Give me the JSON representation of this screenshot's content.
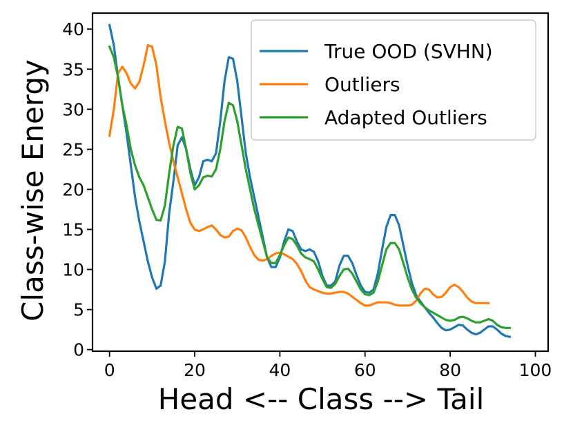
{
  "chart_data": {
    "type": "line",
    "title": "",
    "xlabel": "Head <-- Class --> Tail",
    "ylabel": "Class-wise Energy",
    "xlim": [
      -4,
      103
    ],
    "ylim": [
      -0.2,
      42
    ],
    "xticks": [
      0,
      20,
      40,
      60,
      80,
      100
    ],
    "yticks": [
      0,
      5,
      10,
      15,
      20,
      25,
      30,
      35,
      40
    ],
    "grid": false,
    "legend_position": "top-right",
    "series": [
      {
        "name": "True OOD (SVHN)",
        "color": "#1f77b4",
        "points": [
          [
            0,
            40.5
          ],
          [
            1,
            38
          ],
          [
            2,
            34
          ],
          [
            3,
            30.5
          ],
          [
            4,
            27
          ],
          [
            5,
            23
          ],
          [
            6,
            19
          ],
          [
            7,
            16
          ],
          [
            8,
            13.5
          ],
          [
            9,
            11
          ],
          [
            10,
            9
          ],
          [
            11,
            7.6
          ],
          [
            12,
            8
          ],
          [
            13,
            11
          ],
          [
            14,
            17
          ],
          [
            15,
            21
          ],
          [
            16,
            25.5
          ],
          [
            17,
            26.5
          ],
          [
            18,
            25
          ],
          [
            19,
            22.5
          ],
          [
            20,
            20.5
          ],
          [
            21,
            21.5
          ],
          [
            22,
            23.5
          ],
          [
            23,
            23.7
          ],
          [
            24,
            23.5
          ],
          [
            25,
            24.5
          ],
          [
            26,
            28.5
          ],
          [
            27,
            33.5
          ],
          [
            28,
            36.5
          ],
          [
            29,
            36.3
          ],
          [
            30,
            33.5
          ],
          [
            31,
            29
          ],
          [
            32,
            24.5
          ],
          [
            33,
            21.5
          ],
          [
            34,
            19
          ],
          [
            35,
            16.5
          ],
          [
            36,
            14
          ],
          [
            37,
            11.5
          ],
          [
            38,
            10.3
          ],
          [
            39,
            10.3
          ],
          [
            40,
            11.5
          ],
          [
            41,
            13.5
          ],
          [
            42,
            15
          ],
          [
            43,
            14.8
          ],
          [
            44,
            13.5
          ],
          [
            45,
            12.5
          ],
          [
            46,
            12.3
          ],
          [
            47,
            12.5
          ],
          [
            48,
            12.2
          ],
          [
            49,
            11
          ],
          [
            50,
            9.2
          ],
          [
            51,
            8
          ],
          [
            52,
            8
          ],
          [
            53,
            8.5
          ],
          [
            54,
            10.5
          ],
          [
            55,
            11.7
          ],
          [
            56,
            11.7
          ],
          [
            57,
            10.8
          ],
          [
            58,
            9.3
          ],
          [
            59,
            8
          ],
          [
            60,
            7.2
          ],
          [
            61,
            7.1
          ],
          [
            62,
            7.5
          ],
          [
            63,
            9.5
          ],
          [
            64,
            12.5
          ],
          [
            65,
            15.3
          ],
          [
            66,
            16.8
          ],
          [
            67,
            16.8
          ],
          [
            68,
            15.5
          ],
          [
            69,
            13
          ],
          [
            70,
            10.5
          ],
          [
            71,
            8.3
          ],
          [
            72,
            6.8
          ],
          [
            73,
            6
          ],
          [
            74,
            5.3
          ],
          [
            75,
            4.6
          ],
          [
            76,
            4
          ],
          [
            77,
            3.3
          ],
          [
            78,
            2.7
          ],
          [
            79,
            2.4
          ],
          [
            80,
            2.5
          ],
          [
            81,
            2.8
          ],
          [
            82,
            3.1
          ],
          [
            83,
            3
          ],
          [
            84,
            2.5
          ],
          [
            85,
            2.1
          ],
          [
            86,
            1.9
          ],
          [
            87,
            2.1
          ],
          [
            88,
            2.5
          ],
          [
            89,
            2.9
          ],
          [
            90,
            2.9
          ],
          [
            91,
            2.5
          ],
          [
            92,
            2
          ],
          [
            93,
            1.7
          ],
          [
            94,
            1.6
          ]
        ]
      },
      {
        "name": "Outliers",
        "color": "#ff7f0e",
        "points": [
          [
            0,
            26.7
          ],
          [
            1,
            30
          ],
          [
            2,
            34.5
          ],
          [
            3,
            35.3
          ],
          [
            4,
            34.5
          ],
          [
            5,
            33.2
          ],
          [
            6,
            32.6
          ],
          [
            7,
            33.4
          ],
          [
            8,
            35.5
          ],
          [
            9,
            38
          ],
          [
            10,
            37.8
          ],
          [
            11,
            35.5
          ],
          [
            12,
            31.5
          ],
          [
            13,
            28.5
          ],
          [
            14,
            25.8
          ],
          [
            15,
            23.5
          ],
          [
            16,
            21.5
          ],
          [
            17,
            19.5
          ],
          [
            18,
            17.5
          ],
          [
            19,
            15.8
          ],
          [
            20,
            15
          ],
          [
            21,
            14.8
          ],
          [
            22,
            15
          ],
          [
            23,
            15.3
          ],
          [
            24,
            15.5
          ],
          [
            25,
            15
          ],
          [
            26,
            14.3
          ],
          [
            27,
            14
          ],
          [
            28,
            14.1
          ],
          [
            29,
            14.8
          ],
          [
            30,
            15.1
          ],
          [
            31,
            14.9
          ],
          [
            32,
            14
          ],
          [
            33,
            12.8
          ],
          [
            34,
            11.8
          ],
          [
            35,
            11.2
          ],
          [
            36,
            11.1
          ],
          [
            37,
            11.3
          ],
          [
            38,
            11.7
          ],
          [
            39,
            12
          ],
          [
            40,
            12.1
          ],
          [
            41,
            11.9
          ],
          [
            42,
            11.6
          ],
          [
            43,
            11.3
          ],
          [
            44,
            10.7
          ],
          [
            45,
            9.8
          ],
          [
            46,
            8.6
          ],
          [
            47,
            7.8
          ],
          [
            48,
            7.5
          ],
          [
            49,
            7.3
          ],
          [
            50,
            7.1
          ],
          [
            51,
            7
          ],
          [
            52,
            7
          ],
          [
            53,
            7.1
          ],
          [
            54,
            7.2
          ],
          [
            55,
            7.2
          ],
          [
            56,
            7
          ],
          [
            57,
            6.6
          ],
          [
            58,
            6.2
          ],
          [
            59,
            5.8
          ],
          [
            60,
            5.5
          ],
          [
            61,
            5.5
          ],
          [
            62,
            5.7
          ],
          [
            63,
            5.9
          ],
          [
            64,
            5.9
          ],
          [
            65,
            5.9
          ],
          [
            66,
            5.8
          ],
          [
            67,
            5.6
          ],
          [
            68,
            5.5
          ],
          [
            69,
            5.5
          ],
          [
            70,
            5.5
          ],
          [
            71,
            5.6
          ],
          [
            72,
            6.1
          ],
          [
            73,
            7
          ],
          [
            74,
            7.6
          ],
          [
            75,
            7.5
          ],
          [
            76,
            6.9
          ],
          [
            77,
            6.5
          ],
          [
            78,
            6.6
          ],
          [
            79,
            7.1
          ],
          [
            80,
            7.8
          ],
          [
            81,
            8.1
          ],
          [
            82,
            7.8
          ],
          [
            83,
            7.2
          ],
          [
            84,
            6.5
          ],
          [
            85,
            6
          ],
          [
            86,
            5.8
          ],
          [
            87,
            5.8
          ],
          [
            88,
            5.8
          ],
          [
            89,
            5.8
          ]
        ]
      },
      {
        "name": "Adapted Outliers",
        "color": "#2ca02c",
        "points": [
          [
            0,
            37.8
          ],
          [
            1,
            36.5
          ],
          [
            2,
            34
          ],
          [
            3,
            30.5
          ],
          [
            4,
            28
          ],
          [
            5,
            25
          ],
          [
            6,
            23
          ],
          [
            7,
            21.5
          ],
          [
            8,
            20.5
          ],
          [
            9,
            19
          ],
          [
            10,
            17.5
          ],
          [
            11,
            16.2
          ],
          [
            12,
            16.1
          ],
          [
            13,
            18
          ],
          [
            14,
            22
          ],
          [
            15,
            25.5
          ],
          [
            16,
            27.8
          ],
          [
            17,
            27.6
          ],
          [
            18,
            25
          ],
          [
            19,
            22
          ],
          [
            20,
            20
          ],
          [
            21,
            20.5
          ],
          [
            22,
            21.5
          ],
          [
            23,
            21.7
          ],
          [
            24,
            21.6
          ],
          [
            25,
            22.5
          ],
          [
            26,
            25
          ],
          [
            27,
            28.5
          ],
          [
            28,
            30.8
          ],
          [
            29,
            30.5
          ],
          [
            30,
            28.5
          ],
          [
            31,
            25.5
          ],
          [
            32,
            22.5
          ],
          [
            33,
            20
          ],
          [
            34,
            17.5
          ],
          [
            35,
            15.5
          ],
          [
            36,
            13.5
          ],
          [
            37,
            11.5
          ],
          [
            38,
            10.8
          ],
          [
            39,
            10.8
          ],
          [
            40,
            11.8
          ],
          [
            41,
            13
          ],
          [
            42,
            14
          ],
          [
            43,
            13.8
          ],
          [
            44,
            13
          ],
          [
            45,
            12
          ],
          [
            46,
            11.5
          ],
          [
            47,
            11.3
          ],
          [
            48,
            11
          ],
          [
            49,
            10
          ],
          [
            50,
            8.8
          ],
          [
            51,
            7.8
          ],
          [
            52,
            7.7
          ],
          [
            53,
            8.2
          ],
          [
            54,
            9.2
          ],
          [
            55,
            10
          ],
          [
            56,
            10.1
          ],
          [
            57,
            9.5
          ],
          [
            58,
            8.5
          ],
          [
            59,
            7.5
          ],
          [
            60,
            6.9
          ],
          [
            61,
            6.8
          ],
          [
            62,
            7.1
          ],
          [
            63,
            8.5
          ],
          [
            64,
            10.5
          ],
          [
            65,
            12.5
          ],
          [
            66,
            13.3
          ],
          [
            67,
            13.3
          ],
          [
            68,
            12.5
          ],
          [
            69,
            10.8
          ],
          [
            70,
            9
          ],
          [
            71,
            7.5
          ],
          [
            72,
            6.5
          ],
          [
            73,
            5.8
          ],
          [
            74,
            5.3
          ],
          [
            75,
            4.9
          ],
          [
            76,
            4.6
          ],
          [
            77,
            4.3
          ],
          [
            78,
            4
          ],
          [
            79,
            3.7
          ],
          [
            80,
            3.6
          ],
          [
            81,
            3.7
          ],
          [
            82,
            4
          ],
          [
            83,
            4.1
          ],
          [
            84,
            3.9
          ],
          [
            85,
            3.6
          ],
          [
            86,
            3.4
          ],
          [
            87,
            3.4
          ],
          [
            88,
            3.6
          ],
          [
            89,
            3.8
          ],
          [
            90,
            3.6
          ],
          [
            91,
            3.1
          ],
          [
            92,
            2.8
          ],
          [
            93,
            2.7
          ],
          [
            94,
            2.7
          ]
        ]
      }
    ]
  }
}
